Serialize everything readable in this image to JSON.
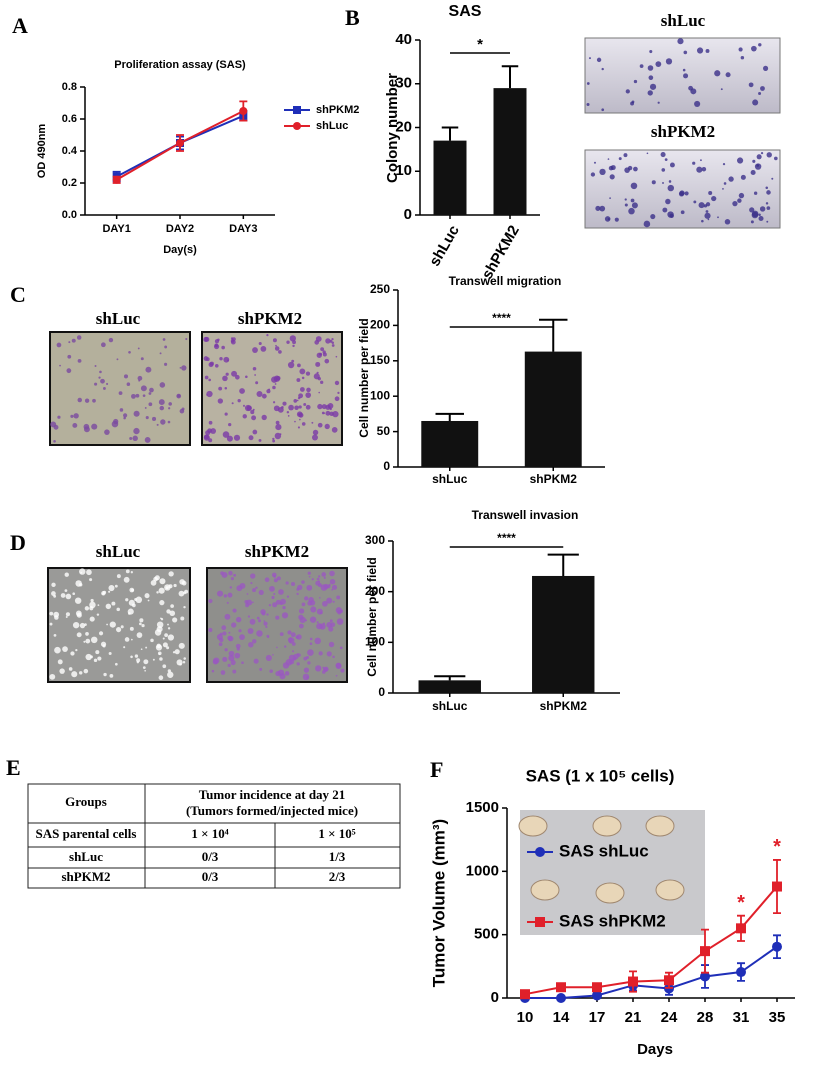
{
  "panels": [
    "A",
    "B",
    "C",
    "D",
    "E",
    "F"
  ],
  "images": {
    "B": [
      "shLuc",
      "shPKM2"
    ],
    "C": [
      "shLuc",
      "shPKM2"
    ],
    "D": [
      "shLuc",
      "shPKM2"
    ]
  },
  "table": {
    "header": [
      "Groups",
      "Tumor incidence at day 21",
      "(Tumors formed/injected mice)"
    ],
    "rows": [
      [
        "SAS parental cells",
        "1 × 10⁴",
        "1 × 10⁵"
      ],
      [
        "shLuc",
        "0/3",
        "1/3"
      ],
      [
        "shPKM2",
        "0/3",
        "2/3"
      ]
    ]
  },
  "chart_data": [
    {
      "type": "line",
      "title": "Proliferation assay (SAS)",
      "xlabel": "Day(s)",
      "ylabel": "OD 490nm",
      "categories": [
        "DAY1",
        "DAY2",
        "DAY3"
      ],
      "series": [
        {
          "name": "shPKM2",
          "color": "#1f2fb8",
          "marker": "square",
          "values": [
            0.24,
            0.45,
            0.62
          ],
          "errors": [
            0.03,
            0.04,
            0.03
          ]
        },
        {
          "name": "shLuc",
          "color": "#e0202a",
          "marker": "circle",
          "values": [
            0.22,
            0.45,
            0.65
          ],
          "errors": [
            0.02,
            0.05,
            0.06
          ]
        }
      ],
      "ylim": [
        0,
        0.8
      ],
      "yticks": [
        {
          "value": 0,
          "label": "0.0"
        },
        0.2,
        0.4,
        0.6,
        0.8
      ],
      "legend": "right"
    },
    {
      "type": "bar",
      "title": "SAS",
      "ylabel": "Colony number",
      "categories": [
        "shLuc",
        "shPKM2"
      ],
      "values": [
        17,
        29
      ],
      "errors": [
        3,
        5
      ],
      "color": "#111111",
      "ylim": [
        0,
        40
      ],
      "yticks": [
        0,
        10,
        20,
        30,
        40
      ],
      "annotation": "*"
    },
    {
      "type": "bar",
      "title": "Transwell migration",
      "ylabel": "Cell number per field",
      "categories": [
        "shLuc",
        "shPKM2"
      ],
      "values": [
        65,
        163
      ],
      "errors": [
        10,
        45
      ],
      "color": "#111111",
      "ylim": [
        0,
        250
      ],
      "yticks": [
        0,
        50,
        100,
        150,
        200,
        250
      ],
      "annotation": "****"
    },
    {
      "type": "bar",
      "title": "Transwell invasion",
      "ylabel": "Cell number per field",
      "categories": [
        "shLuc",
        "shPKM2"
      ],
      "values": [
        25,
        231
      ],
      "errors": [
        8,
        42
      ],
      "color": "#111111",
      "ylim": [
        0,
        300
      ],
      "yticks": [
        0,
        100,
        200,
        300
      ],
      "annotation": "****"
    },
    {
      "type": "line",
      "title": "SAS (1 x 10⁵ cells)",
      "xlabel": "Days",
      "ylabel": "Tumor Volume (mm³)",
      "categories": [
        "10",
        "14",
        "17",
        "21",
        "24",
        "28",
        "31",
        "35"
      ],
      "series": [
        {
          "name": "SAS shLuc",
          "color": "#1f2fb8",
          "marker": "circle",
          "values": [
            0,
            0,
            20,
            100,
            75,
            170,
            205,
            405
          ],
          "errors": [
            5,
            5,
            20,
            40,
            50,
            90,
            70,
            90
          ]
        },
        {
          "name": "SAS shPKM2",
          "color": "#e0202a",
          "marker": "square",
          "values": [
            30,
            85,
            85,
            130,
            140,
            370,
            550,
            880
          ],
          "errors": [
            10,
            10,
            20,
            80,
            60,
            170,
            100,
            210
          ]
        }
      ],
      "ylim": [
        0,
        1500
      ],
      "yticks": [
        0,
        500,
        1000,
        1500
      ],
      "annotations": [
        "*",
        "*"
      ],
      "legend": "left"
    }
  ]
}
